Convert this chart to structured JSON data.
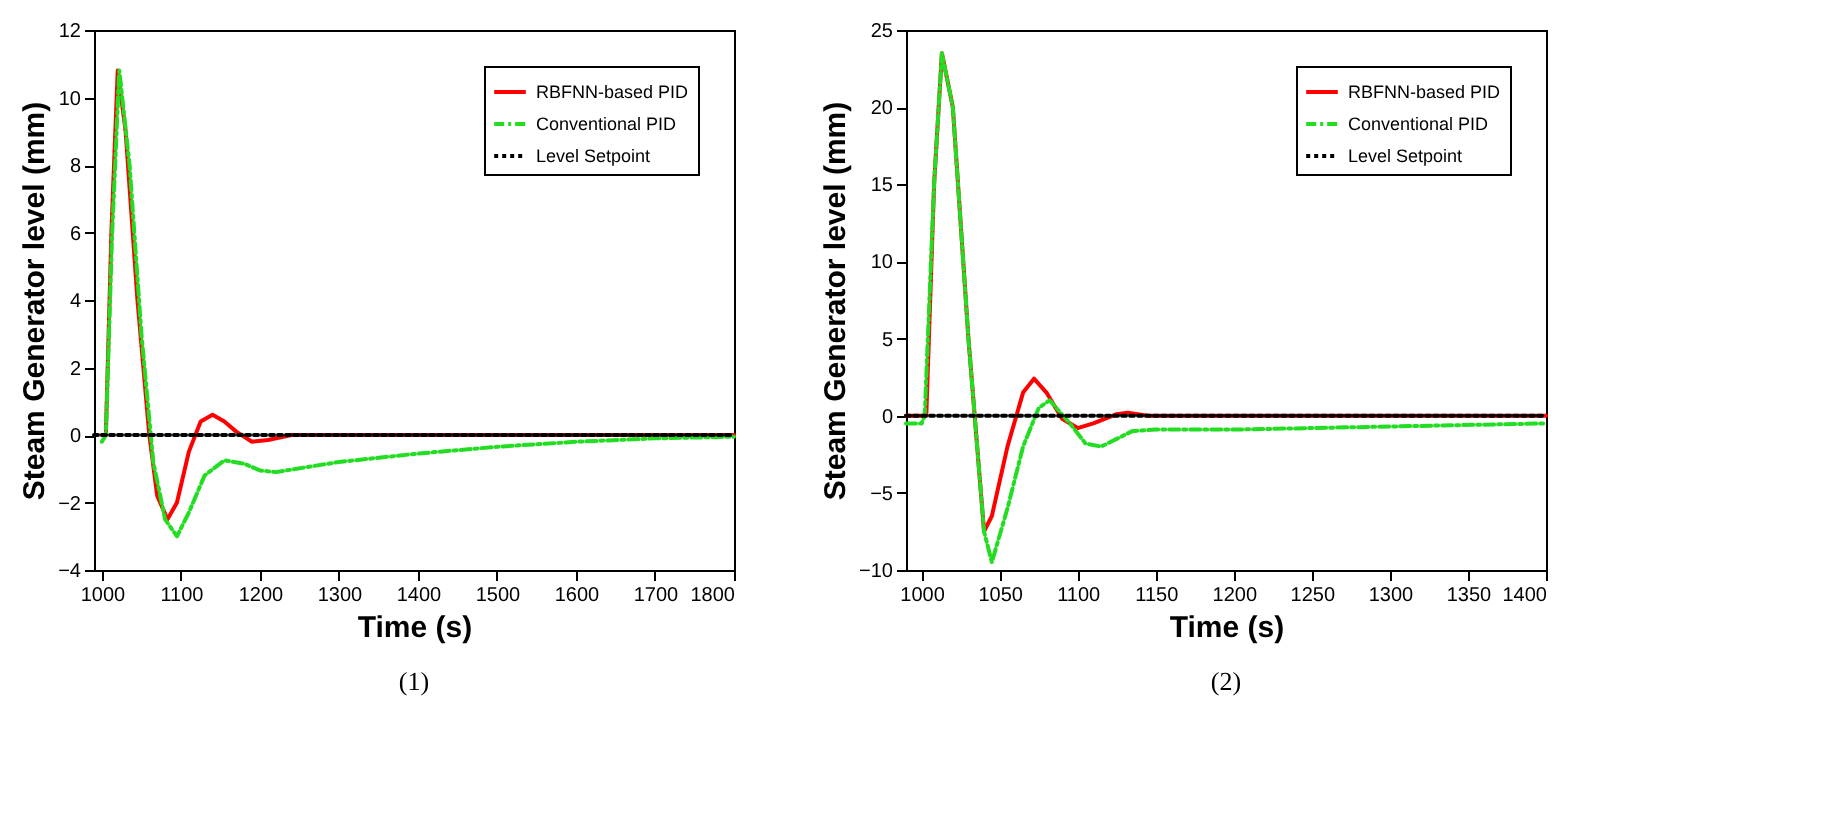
{
  "chart_data": [
    {
      "type": "line",
      "xlabel": "Time (s)",
      "ylabel": "Steam Generator level (mm)",
      "annotations": [
        "(1)"
      ],
      "xlim": [
        990,
        1800
      ],
      "ylim": [
        -4,
        12
      ],
      "xticks": [
        1000,
        1100,
        1200,
        1300,
        1400,
        1500,
        1600,
        1700,
        1800
      ],
      "yticks": [
        -4,
        -2,
        0,
        2,
        4,
        6,
        8,
        10,
        12
      ],
      "grid": false,
      "legend": "top right",
      "series": [
        {
          "name": "RBFNN-based PID",
          "color": "#ff0000",
          "line_style": "solid",
          "x": [
            1000,
            1005,
            1012,
            1020,
            1030,
            1045,
            1060,
            1070,
            1083,
            1095,
            1110,
            1125,
            1140,
            1155,
            1170,
            1190,
            1210,
            1240,
            1300,
            1800
          ],
          "values": [
            0,
            0,
            6,
            10.8,
            9,
            4,
            0,
            -1.8,
            -2.5,
            -2,
            -0.5,
            0.4,
            0.6,
            0.4,
            0.1,
            -0.2,
            -0.15,
            0,
            0,
            0
          ]
        },
        {
          "name": "Conventional PID",
          "color": "#22dd22",
          "line_style": "dashed",
          "x": [
            1000,
            1005,
            1013,
            1022,
            1035,
            1050,
            1065,
            1080,
            1095,
            1110,
            1130,
            1155,
            1180,
            1200,
            1220,
            1300,
            1400,
            1500,
            1600,
            1700,
            1800
          ],
          "values": [
            -0.2,
            0,
            6,
            10.8,
            8,
            3,
            -0.8,
            -2.5,
            -3,
            -2.3,
            -1.2,
            -0.75,
            -0.85,
            -1.05,
            -1.1,
            -0.8,
            -0.55,
            -0.35,
            -0.2,
            -0.1,
            -0.05
          ]
        },
        {
          "name": "Level Setpoint",
          "color": "#000000",
          "line_style": "dotted",
          "x": [
            990,
            1800
          ],
          "values": [
            0,
            0
          ]
        }
      ]
    },
    {
      "type": "line",
      "xlabel": "Time (s)",
      "ylabel": "Steam Generator level (mm)",
      "annotations": [
        "(2)"
      ],
      "xlim": [
        990,
        1400
      ],
      "ylim": [
        -10,
        25
      ],
      "xticks": [
        1000,
        1050,
        1100,
        1150,
        1200,
        1250,
        1300,
        1350,
        1400
      ],
      "yticks": [
        -10,
        -5,
        0,
        5,
        10,
        15,
        20,
        25
      ],
      "grid": false,
      "legend": "top right",
      "series": [
        {
          "name": "RBFNN-based PID",
          "color": "#ff0000",
          "line_style": "solid",
          "x": [
            990,
            1000,
            1003,
            1008,
            1013,
            1020,
            1030,
            1040,
            1045,
            1055,
            1065,
            1072,
            1080,
            1090,
            1100,
            1110,
            1125,
            1132,
            1145,
            1400
          ],
          "values": [
            0,
            0,
            0,
            15,
            23.5,
            20,
            5,
            -7.5,
            -6.5,
            -2,
            1.5,
            2.4,
            1.5,
            -0.2,
            -0.8,
            -0.5,
            0.1,
            0.2,
            0,
            0
          ]
        },
        {
          "name": "Conventional PID",
          "color": "#22dd22",
          "line_style": "dashed",
          "x": [
            990,
            1000,
            1002,
            1008,
            1013,
            1020,
            1030,
            1040,
            1045,
            1055,
            1065,
            1075,
            1082,
            1095,
            1105,
            1115,
            1125,
            1135,
            1150,
            1200,
            1300,
            1400
          ],
          "values": [
            -0.5,
            -0.5,
            0,
            15,
            23.5,
            20,
            5,
            -7.5,
            -9.5,
            -6,
            -2,
            0.5,
            1,
            -0.5,
            -1.8,
            -2,
            -1.5,
            -1,
            -0.9,
            -0.9,
            -0.7,
            -0.5
          ]
        },
        {
          "name": "Level Setpoint",
          "color": "#000000",
          "line_style": "dotted",
          "x": [
            990,
            1400
          ],
          "values": [
            0,
            0
          ]
        }
      ]
    }
  ]
}
